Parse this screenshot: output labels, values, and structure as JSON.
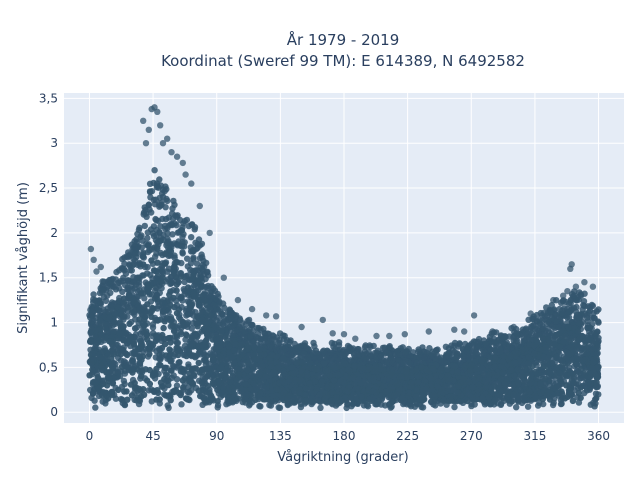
{
  "chart_data": {
    "type": "scatter",
    "title": [
      "År 1979 - 2019",
      "Koordinat (Sweref 99 TM): E 614389, N 6492582"
    ],
    "xlabel": "Vågriktning (grader)",
    "ylabel": "Signifikant våghöjd (m)",
    "xlim": [
      -18,
      378
    ],
    "ylim": [
      -0.12,
      3.56
    ],
    "x_ticks": [
      0,
      45,
      90,
      135,
      180,
      225,
      270,
      315,
      360
    ],
    "x_tick_labels": [
      "0",
      "45",
      "90",
      "135",
      "180",
      "225",
      "270",
      "315",
      "360"
    ],
    "y_ticks": [
      0,
      0.5,
      1,
      1.5,
      2,
      2.5,
      3,
      3.5
    ],
    "y_tick_labels": [
      "0",
      "0,5",
      "1",
      "1,5",
      "2",
      "2,5",
      "3",
      "3,5"
    ],
    "grid": true,
    "colors": {
      "marker": "#34566e",
      "plot_bg": "#e5ecf6",
      "grid": "#ffffff",
      "text": "#2a3f5f"
    },
    "envelope": {
      "description_units": "upper bound of dense point cloud, x in degrees, y in metres",
      "x": [
        0,
        10,
        20,
        30,
        40,
        45,
        50,
        55,
        60,
        65,
        70,
        75,
        80,
        85,
        90,
        95,
        100,
        110,
        120,
        130,
        140,
        150,
        160,
        180,
        200,
        220,
        240,
        260,
        270,
        280,
        290,
        300,
        310,
        320,
        330,
        340,
        345,
        350,
        360
      ],
      "y": [
        1.2,
        1.45,
        1.6,
        1.85,
        2.35,
        2.75,
        2.6,
        2.5,
        2.35,
        2.25,
        2.2,
        2.05,
        1.8,
        1.5,
        1.3,
        1.2,
        1.1,
        1.0,
        0.95,
        0.85,
        0.8,
        0.75,
        0.72,
        0.72,
        0.7,
        0.68,
        0.7,
        0.72,
        0.75,
        0.8,
        0.85,
        0.9,
        1.0,
        1.1,
        1.2,
        1.3,
        1.35,
        1.3,
        1.2
      ],
      "lower_bound": 0.05
    },
    "outliers": {
      "x": [
        1,
        3,
        5,
        8,
        38,
        40,
        42,
        44,
        46,
        48,
        50,
        52,
        55,
        58,
        62,
        66,
        68,
        72,
        78,
        85,
        95,
        105,
        115,
        125,
        132,
        150,
        165,
        172,
        180,
        188,
        203,
        212,
        223,
        240,
        258,
        265,
        272,
        285,
        300,
        312,
        328,
        335,
        338,
        340,
        341,
        344,
        350,
        356
      ],
      "y": [
        1.82,
        1.7,
        1.57,
        1.62,
        3.25,
        3.0,
        3.15,
        3.38,
        3.4,
        3.35,
        3.2,
        3.0,
        3.05,
        2.9,
        2.85,
        2.78,
        2.65,
        2.55,
        2.3,
        2.0,
        1.5,
        1.25,
        1.15,
        1.08,
        1.07,
        0.95,
        1.03,
        0.88,
        0.87,
        0.82,
        0.85,
        0.85,
        0.87,
        0.9,
        0.92,
        0.9,
        1.08,
        0.9,
        0.95,
        1.1,
        1.25,
        1.3,
        1.35,
        1.6,
        1.65,
        1.4,
        1.45,
        1.4
      ]
    }
  }
}
